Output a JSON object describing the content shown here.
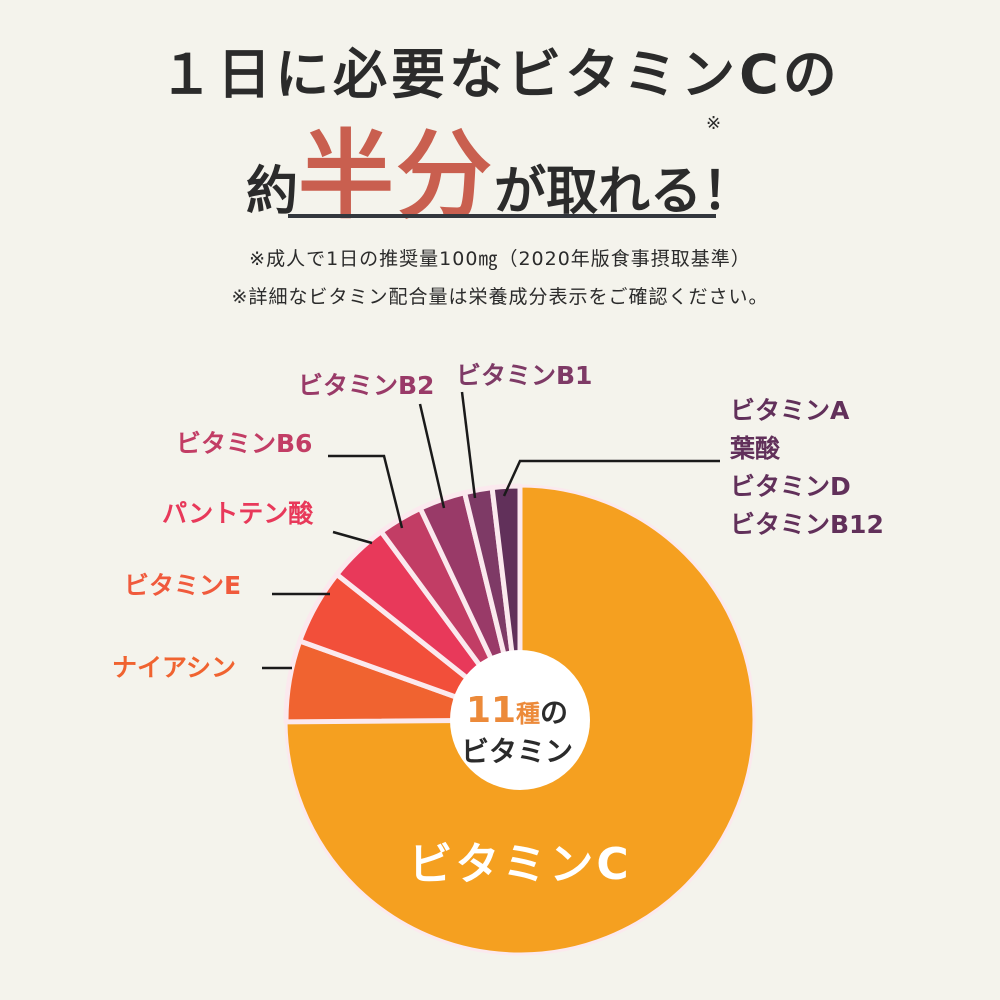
{
  "header": {
    "title_line1": "１日に必要なビタミンCの",
    "title_line2_pre": "約",
    "title_line2_emph": "半分",
    "title_line2_post": "が取れる！",
    "asterisk": "※",
    "note1": "※成人で1日の推奨量100㎎（2020年版食事摂取基準）",
    "note2": "※詳細なビタミン配合量は栄養成分表示をご確認ください。"
  },
  "center": {
    "count": "11",
    "unit": "種",
    "particle": "の",
    "line2": "ビタミン"
  },
  "labels": {
    "vitamin_c": "ビタミンC",
    "niacin": "ナイアシン",
    "vitamin_e": "ビタミンE",
    "pantothenic": "パントテン酸",
    "vitamin_b6": "ビタミンB6",
    "vitamin_b2": "ビタミンB2",
    "vitamin_b1": "ビタミンB1",
    "group": [
      "ビタミンA",
      "葉酸",
      "ビタミンD",
      "ビタミンB12"
    ]
  },
  "colors": {
    "background": "#f4f3ec",
    "accent": "#c95f4f",
    "vitamin_c": "#f5a020",
    "niacin": "#f06330",
    "vitamin_e": "#f24f3a",
    "pantothenic": "#e8395a",
    "vitamin_b6": "#c23d65",
    "vitamin_b2": "#993a68",
    "vitamin_b1": "#7e3a66",
    "group": "#61305a"
  },
  "chart_data": {
    "type": "pie",
    "title": "11種のビタミン",
    "start_angle": "12 o'clock, clockwise",
    "categories": [
      "ビタミンC",
      "ナイアシン",
      "ビタミンE",
      "パントテン酸",
      "ビタミンB6",
      "ビタミンB2",
      "ビタミンB1",
      "ビタミンA・葉酸・ビタミンD・ビタミンB12"
    ],
    "values": [
      74.8,
      5.6,
      5.2,
      4.2,
      3.1,
      3.2,
      1.9,
      1.9
    ],
    "unit": "approx. % share of pie (estimated from angles)",
    "donut_center_label": "11種のビタミン",
    "legend_position": "leader-line labels around pie"
  }
}
